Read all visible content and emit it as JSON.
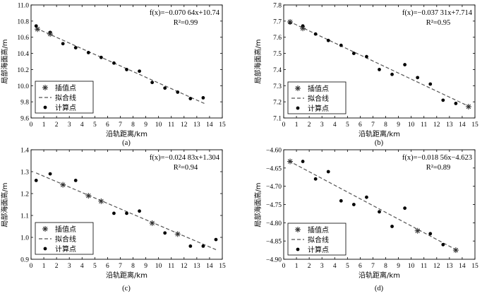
{
  "legend": {
    "interp": "插值点",
    "fit": "拟合线",
    "calc": "计算点"
  },
  "chart_data": [
    {
      "type": "scatter",
      "panel_label": "(a)",
      "xlabel": "沿轨距离/km",
      "ylabel": "局部海面高/m",
      "xlim": [
        0,
        15
      ],
      "ylim": [
        9.6,
        11.0
      ],
      "xticks": [
        0,
        1,
        2,
        3,
        4,
        5,
        6,
        7,
        8,
        9,
        10,
        11,
        12,
        13,
        14,
        15
      ],
      "yticks": [
        9.6,
        9.8,
        10.0,
        10.2,
        10.4,
        10.6,
        10.8,
        11.0
      ],
      "ytick_labels": [
        "9.6",
        "9.8",
        "10.0",
        "10.2",
        "10.4",
        "10.6",
        "10.8",
        "11.0"
      ],
      "equation": "f(x)=−0.070 64x+10.74",
      "r2": "R²=0.99",
      "fit": {
        "slope": -0.07064,
        "intercept": 10.74,
        "x_range": [
          0.4,
          13.6
        ]
      },
      "series": [
        {
          "name": "插值点",
          "marker": "star",
          "points": [
            [
              0.5,
              10.7
            ],
            [
              1.5,
              10.64
            ]
          ]
        },
        {
          "name": "计算点",
          "marker": "dot",
          "points": [
            [
              0.4,
              10.74
            ],
            [
              1.5,
              10.66
            ],
            [
              2.5,
              10.52
            ],
            [
              3.5,
              10.47
            ],
            [
              4.5,
              10.41
            ],
            [
              5.5,
              10.35
            ],
            [
              6.5,
              10.28
            ],
            [
              7.5,
              10.2
            ],
            [
              8.5,
              10.18
            ],
            [
              9.5,
              10.04
            ],
            [
              10.5,
              9.97
            ],
            [
              11.5,
              9.92
            ],
            [
              12.5,
              9.84
            ],
            [
              13.5,
              9.85
            ]
          ]
        }
      ]
    },
    {
      "type": "scatter",
      "panel_label": "(b)",
      "xlabel": "沿轨距离/km",
      "ylabel": "局部海面高/m",
      "xlim": [
        0,
        15
      ],
      "ylim": [
        7.1,
        7.8
      ],
      "xticks": [
        0,
        1,
        2,
        3,
        4,
        5,
        6,
        7,
        8,
        9,
        10,
        11,
        12,
        13,
        14,
        15
      ],
      "yticks": [
        7.1,
        7.2,
        7.3,
        7.4,
        7.5,
        7.6,
        7.7,
        7.8
      ],
      "ytick_labels": [
        "7.1",
        "7.2",
        "7.3",
        "7.4",
        "7.5",
        "7.6",
        "7.7",
        "7.8"
      ],
      "equation": "f(x)=−0.037 31x+7.714",
      "r2": "R²=0.95",
      "fit": {
        "slope": -0.03731,
        "intercept": 7.714,
        "x_range": [
          0.4,
          14.6
        ]
      },
      "series": [
        {
          "name": "插值点",
          "marker": "star",
          "points": [
            [
              0.5,
              7.695
            ],
            [
              1.5,
              7.655
            ],
            [
              14.5,
              7.17
            ]
          ]
        },
        {
          "name": "计算点",
          "marker": "dot",
          "points": [
            [
              0.5,
              7.69
            ],
            [
              1.5,
              7.67
            ],
            [
              2.5,
              7.62
            ],
            [
              3.5,
              7.58
            ],
            [
              4.5,
              7.55
            ],
            [
              5.5,
              7.5
            ],
            [
              6.5,
              7.48
            ],
            [
              7.5,
              7.4
            ],
            [
              8.5,
              7.37
            ],
            [
              9.5,
              7.43
            ],
            [
              10.5,
              7.35
            ],
            [
              11.5,
              7.31
            ],
            [
              12.5,
              7.21
            ],
            [
              13.5,
              7.19
            ]
          ]
        }
      ]
    },
    {
      "type": "scatter",
      "panel_label": "(c)",
      "xlabel": "沿轨距离/km",
      "ylabel": "局部海面高/m",
      "xlim": [
        0,
        15
      ],
      "ylim": [
        0.9,
        1.4
      ],
      "xticks": [
        0,
        1,
        2,
        3,
        4,
        5,
        6,
        7,
        8,
        9,
        10,
        11,
        12,
        13,
        14,
        15
      ],
      "yticks": [
        0.9,
        1.0,
        1.1,
        1.2,
        1.3,
        1.4
      ],
      "ytick_labels": [
        "0.9",
        "1.0",
        "1.1",
        "1.2",
        "1.3",
        "1.4"
      ],
      "equation": "f(x)=−0.024 83x+1.304",
      "r2": "R²=0.94",
      "fit": {
        "slope": -0.02483,
        "intercept": 1.304,
        "x_range": [
          0.4,
          14.6
        ]
      },
      "series": [
        {
          "name": "插值点",
          "marker": "star",
          "points": [
            [
              2.5,
              1.24
            ],
            [
              4.5,
              1.19
            ],
            [
              5.5,
              1.165
            ],
            [
              9.5,
              1.065
            ],
            [
              11.5,
              1.015
            ]
          ]
        },
        {
          "name": "计算点",
          "marker": "dot",
          "points": [
            [
              0.4,
              1.26
            ],
            [
              1.5,
              1.29
            ],
            [
              3.5,
              1.26
            ],
            [
              6.5,
              1.11
            ],
            [
              7.5,
              1.11
            ],
            [
              8.5,
              1.12
            ],
            [
              10.5,
              1.02
            ],
            [
              12.5,
              0.96
            ],
            [
              13.5,
              0.96
            ],
            [
              14.5,
              0.99
            ]
          ]
        }
      ]
    },
    {
      "type": "scatter",
      "panel_label": "(d)",
      "xlabel": "沿轨距离/km",
      "ylabel": "局部海面高/m",
      "xlim": [
        0,
        15
      ],
      "ylim": [
        -4.9,
        -4.6
      ],
      "xticks": [
        0,
        1,
        2,
        3,
        4,
        5,
        6,
        7,
        8,
        9,
        10,
        11,
        12,
        13,
        14,
        15
      ],
      "yticks": [
        -4.9,
        -4.85,
        -4.8,
        -4.75,
        -4.7,
        -4.65,
        -4.6
      ],
      "ytick_labels": [
        "−4.90",
        "−4.85",
        "−4.80",
        "−4.75",
        "−4.70",
        "−4.65",
        "−4.60"
      ],
      "equation": "f(x)=−0.018 56x−4.623",
      "r2": "R²=0.89",
      "fit": {
        "slope": -0.01856,
        "intercept": -4.623,
        "x_range": [
          0.4,
          13.6
        ]
      },
      "series": [
        {
          "name": "插值点",
          "marker": "star",
          "points": [
            [
              0.5,
              -4.632
            ],
            [
              10.5,
              -4.822
            ],
            [
              13.5,
              -4.875
            ]
          ]
        },
        {
          "name": "计算点",
          "marker": "dot",
          "points": [
            [
              1.5,
              -4.632
            ],
            [
              2.5,
              -4.68
            ],
            [
              3.5,
              -4.66
            ],
            [
              4.5,
              -4.74
            ],
            [
              5.5,
              -4.75
            ],
            [
              6.5,
              -4.73
            ],
            [
              7.5,
              -4.77
            ],
            [
              8.5,
              -4.81
            ],
            [
              9.5,
              -4.76
            ],
            [
              11.5,
              -4.83
            ],
            [
              12.5,
              -4.86
            ]
          ]
        }
      ]
    }
  ]
}
